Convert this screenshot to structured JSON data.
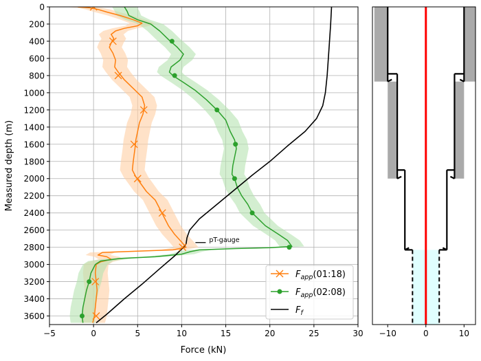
{
  "chart_data": [
    {
      "type": "line",
      "xlabel": "Force (kN)",
      "ylabel": "Measured depth (m)",
      "xlim": [
        -5,
        30
      ],
      "ylim": [
        3700,
        0
      ],
      "y_inverted": true,
      "grid": true,
      "x_ticks": [
        -5,
        0,
        5,
        10,
        15,
        20,
        25,
        30
      ],
      "y_ticks": [
        0,
        200,
        400,
        600,
        800,
        1000,
        1200,
        1400,
        1600,
        1800,
        2000,
        2200,
        2400,
        2600,
        2800,
        3000,
        3200,
        3400,
        3600
      ],
      "legend": {
        "placement": "bottom-right"
      },
      "series": [
        {
          "name": "F_app(01:18)",
          "legend_main": "F",
          "legend_sub": "app",
          "legend_suffix": "(01:18)",
          "color": "#ff7f0e",
          "band_color": "#ffcfa3",
          "marker": "x",
          "points": [
            [
              -1.8,
              0
            ],
            [
              -0.5,
              10
            ],
            [
              0.5,
              30
            ],
            [
              1.5,
              60
            ],
            [
              3,
              100
            ],
            [
              4.5,
              150
            ],
            [
              5.5,
              190
            ],
            [
              5,
              220
            ],
            [
              3.5,
              250
            ],
            [
              2.5,
              280
            ],
            [
              2,
              320
            ],
            [
              2.3,
              370
            ],
            [
              2,
              420
            ],
            [
              1.8,
              470
            ],
            [
              2.2,
              540
            ],
            [
              2.5,
              620
            ],
            [
              2.4,
              700
            ],
            [
              2.8,
              760
            ],
            [
              3.5,
              850
            ],
            [
              4.5,
              950
            ],
            [
              5.5,
              1050
            ],
            [
              5.8,
              1150
            ],
            [
              5.6,
              1250
            ],
            [
              5.2,
              1350
            ],
            [
              5,
              1450
            ],
            [
              4.8,
              1550
            ],
            [
              4.7,
              1650
            ],
            [
              4.5,
              1800
            ],
            [
              4.4,
              1900
            ],
            [
              4.8,
              1980
            ],
            [
              5.3,
              2050
            ],
            [
              6,
              2150
            ],
            [
              7,
              2250
            ],
            [
              7.5,
              2350
            ],
            [
              8,
              2450
            ],
            [
              8.5,
              2550
            ],
            [
              9.2,
              2650
            ],
            [
              10,
              2740
            ],
            [
              10.5,
              2800
            ],
            [
              9,
              2830
            ],
            [
              5,
              2845
            ],
            [
              1,
              2860
            ],
            [
              0.5,
              2890
            ],
            [
              1.5,
              2910
            ],
            [
              2,
              2940
            ],
            [
              0.8,
              2970
            ],
            [
              0.3,
              3000
            ],
            [
              0.2,
              3100
            ],
            [
              0.3,
              3200
            ],
            [
              0.4,
              3300
            ],
            [
              0.3,
              3400
            ],
            [
              0.2,
              3500
            ],
            [
              0.1,
              3600
            ],
            [
              -0.1,
              3680
            ]
          ],
          "markers": [
            [
              0,
              0
            ],
            [
              2.2,
              400
            ],
            [
              2.8,
              800
            ],
            [
              5.7,
              1200
            ],
            [
              4.6,
              1600
            ],
            [
              5,
              2000
            ],
            [
              7.8,
              2400
            ],
            [
              10.1,
              2800
            ],
            [
              0.2,
              3200
            ],
            [
              0.3,
              3600
            ]
          ]
        },
        {
          "name": "F_app(02:08)",
          "legend_main": "F",
          "legend_sub": "app",
          "legend_suffix": "(02:08)",
          "color": "#2ca02c",
          "band_color": "#b6e3b0",
          "marker": "o",
          "points": [
            [
              3.5,
              0
            ],
            [
              3.8,
              50
            ],
            [
              4,
              100
            ],
            [
              5,
              150
            ],
            [
              6.5,
              200
            ],
            [
              7.5,
              280
            ],
            [
              8.5,
              380
            ],
            [
              9.5,
              470
            ],
            [
              10.2,
              550
            ],
            [
              9.8,
              620
            ],
            [
              8.8,
              700
            ],
            [
              8.6,
              760
            ],
            [
              9,
              800
            ],
            [
              10.2,
              880
            ],
            [
              11.5,
              970
            ],
            [
              12.8,
              1080
            ],
            [
              14,
              1200
            ],
            [
              15,
              1320
            ],
            [
              15.5,
              1450
            ],
            [
              16,
              1550
            ],
            [
              16.2,
              1650
            ],
            [
              16,
              1750
            ],
            [
              15.8,
              1850
            ],
            [
              15.7,
              1950
            ],
            [
              16,
              2000
            ],
            [
              16.3,
              2100
            ],
            [
              16.8,
              2200
            ],
            [
              17.5,
              2300
            ],
            [
              18,
              2400
            ],
            [
              19.5,
              2550
            ],
            [
              21,
              2650
            ],
            [
              22,
              2720
            ],
            [
              22.5,
              2790
            ],
            [
              20,
              2805
            ],
            [
              16,
              2815
            ],
            [
              12,
              2830
            ],
            [
              11,
              2850
            ],
            [
              10,
              2880
            ],
            [
              7,
              2910
            ],
            [
              3,
              2930
            ],
            [
              0.8,
              2960
            ],
            [
              0.2,
              3000
            ],
            [
              -0.3,
              3100
            ],
            [
              -0.5,
              3200
            ],
            [
              -0.8,
              3300
            ],
            [
              -1,
              3400
            ],
            [
              -1.2,
              3500
            ],
            [
              -1.3,
              3600
            ],
            [
              -1.2,
              3680
            ]
          ],
          "markers": [
            [
              8.9,
              400
            ],
            [
              9.2,
              800
            ],
            [
              14,
              1200
            ],
            [
              16.1,
              1600
            ],
            [
              16,
              2000
            ],
            [
              18,
              2400
            ],
            [
              22.2,
              2800
            ],
            [
              -0.5,
              3200
            ],
            [
              -1.3,
              3600
            ]
          ]
        },
        {
          "name": "F_f",
          "legend_main": "F",
          "legend_sub": "f",
          "legend_suffix": "",
          "color": "#000000",
          "marker": "none",
          "points": [
            [
              27,
              0
            ],
            [
              26.9,
              200
            ],
            [
              26.7,
              500
            ],
            [
              26.5,
              800
            ],
            [
              26.3,
              1000
            ],
            [
              26,
              1150
            ],
            [
              25.3,
              1300
            ],
            [
              24,
              1450
            ],
            [
              22,
              1620
            ],
            [
              20,
              1800
            ],
            [
              18,
              1960
            ],
            [
              16,
              2130
            ],
            [
              14,
              2300
            ],
            [
              12,
              2470
            ],
            [
              10.9,
              2600
            ],
            [
              10.6,
              2690
            ],
            [
              10.5,
              2760
            ],
            [
              10.2,
              2800
            ],
            [
              9.2,
              2900
            ],
            [
              7.5,
              3050
            ],
            [
              5.5,
              3230
            ],
            [
              3.5,
              3400
            ],
            [
              1.5,
              3580
            ],
            [
              0.3,
              3680
            ]
          ]
        }
      ],
      "annotation": {
        "text": "pT-gauge",
        "depth": 2745,
        "force": 10.7
      }
    },
    {
      "type": "diagram",
      "xlim": [
        -14,
        13
      ],
      "ylim": [
        3700,
        0
      ],
      "x_ticks": [
        -10,
        0,
        10
      ],
      "centerline_color": "#ff0000",
      "open_hole_color": "#e0ffff",
      "cement_color": "#aaaaaa",
      "casings": [
        {
          "radius": 10,
          "top": 0,
          "bottom": 870,
          "cement_outer": 13.5,
          "cement_top": 0
        },
        {
          "radius": 7.5,
          "top": 780,
          "bottom": 2000,
          "cement_outer": 10,
          "cement_top": 870
        },
        {
          "radius": 5.5,
          "top": 1900,
          "bottom": 2830,
          "cement_outer": null,
          "cement_top": null
        }
      ],
      "open_hole": {
        "radius": 3.5,
        "top": 2830,
        "bottom": 3700
      }
    }
  ]
}
